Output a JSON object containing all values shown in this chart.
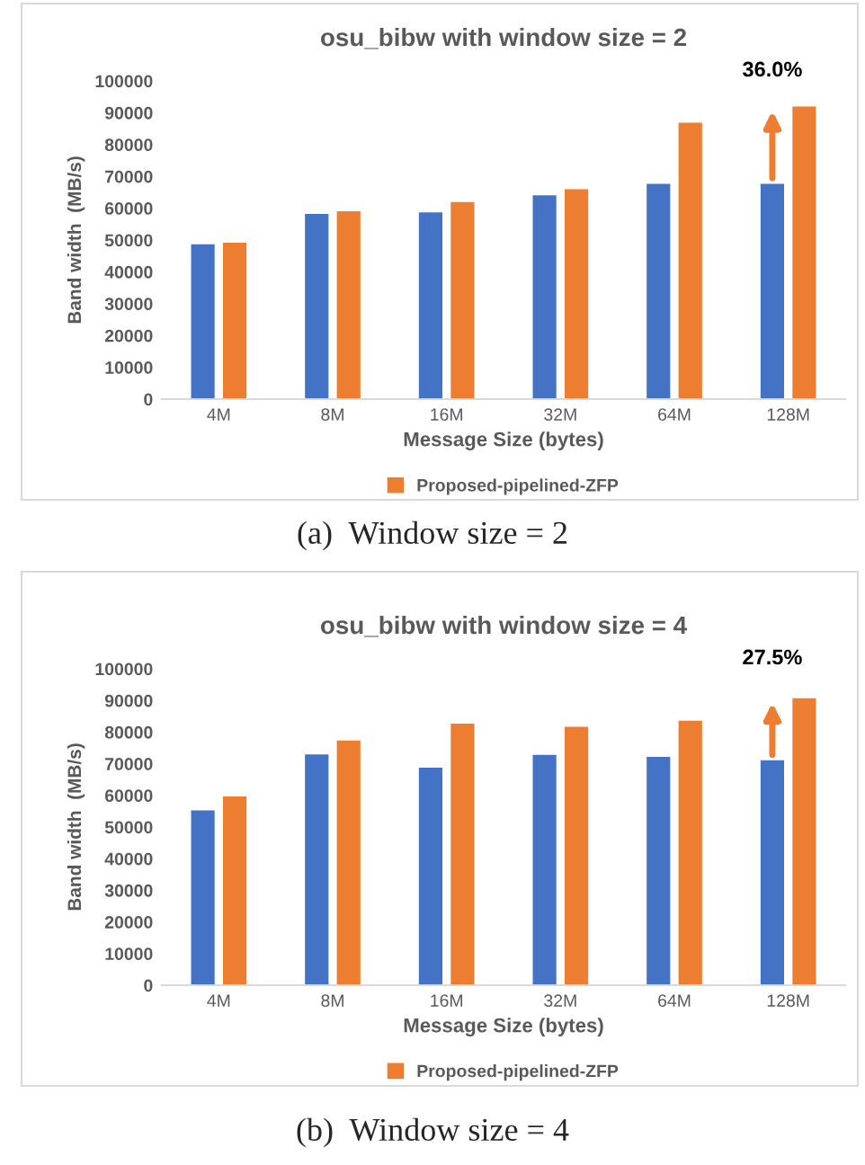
{
  "chart_data": [
    {
      "type": "bar",
      "title": "osu_bibw with window size = 2",
      "xlabel": "Message Size (bytes)",
      "ylabel": "Band width  (MB/s)",
      "categories": [
        "4M",
        "8M",
        "16M",
        "32M",
        "64M",
        "128M"
      ],
      "series": [
        {
          "color": "#4472c4",
          "values": [
            48900,
            58400,
            58900,
            64300,
            67900,
            67900
          ]
        },
        {
          "name": "Proposed-pipelined-ZFP",
          "color": "#ed7d31",
          "values": [
            49400,
            59300,
            62200,
            66200,
            87100,
            92200
          ]
        }
      ],
      "ylim": [
        0,
        100000
      ],
      "yticks": [
        0,
        10000,
        20000,
        30000,
        40000,
        50000,
        60000,
        70000,
        80000,
        90000,
        100000
      ],
      "grid": false,
      "legend": "bottom",
      "annotations": [
        "36.0%",
        "(a)  Window size = 2"
      ]
    },
    {
      "type": "bar",
      "title": "osu_bibw with window size = 4",
      "xlabel": "Message Size (bytes)",
      "ylabel": "Band width  (MB/s)",
      "categories": [
        "4M",
        "8M",
        "16M",
        "32M",
        "64M",
        "128M"
      ],
      "series": [
        {
          "color": "#4472c4",
          "values": [
            55500,
            73200,
            69000,
            73000,
            72400,
            71300
          ]
        },
        {
          "name": "Proposed-pipelined-ZFP",
          "color": "#ed7d31",
          "values": [
            59900,
            77600,
            82900,
            81900,
            83800,
            90900
          ]
        }
      ],
      "ylim": [
        0,
        100000
      ],
      "yticks": [
        0,
        10000,
        20000,
        30000,
        40000,
        50000,
        60000,
        70000,
        80000,
        90000,
        100000
      ],
      "grid": false,
      "legend": "bottom",
      "annotations": [
        "27.5%",
        "(b)  Window size = 4"
      ]
    }
  ]
}
